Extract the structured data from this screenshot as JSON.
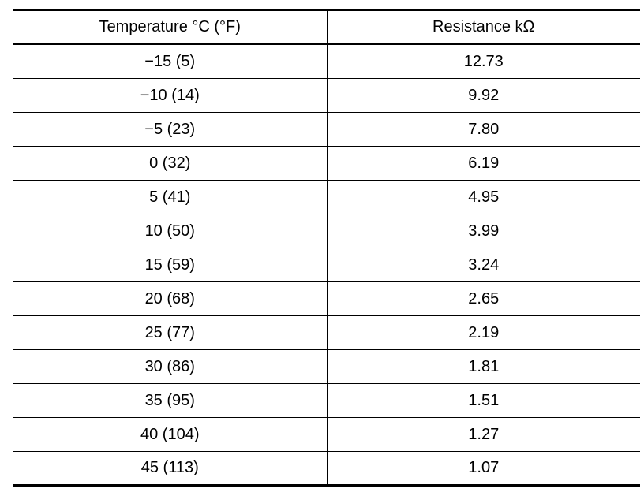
{
  "table": {
    "headers": [
      "Temperature °C (°F)",
      "Resistance kΩ"
    ],
    "rows": [
      [
        "−15 (5)",
        "12.73"
      ],
      [
        "−10 (14)",
        "9.92"
      ],
      [
        "−5 (23)",
        "7.80"
      ],
      [
        "0 (32)",
        "6.19"
      ],
      [
        "5 (41)",
        "4.95"
      ],
      [
        "10 (50)",
        "3.99"
      ],
      [
        "15 (59)",
        "3.24"
      ],
      [
        "20 (68)",
        "2.65"
      ],
      [
        "25 (77)",
        "2.19"
      ],
      [
        "30 (86)",
        "1.81"
      ],
      [
        "35 (95)",
        "1.51"
      ],
      [
        "40 (104)",
        "1.27"
      ],
      [
        "45 (113)",
        "1.07"
      ]
    ]
  }
}
